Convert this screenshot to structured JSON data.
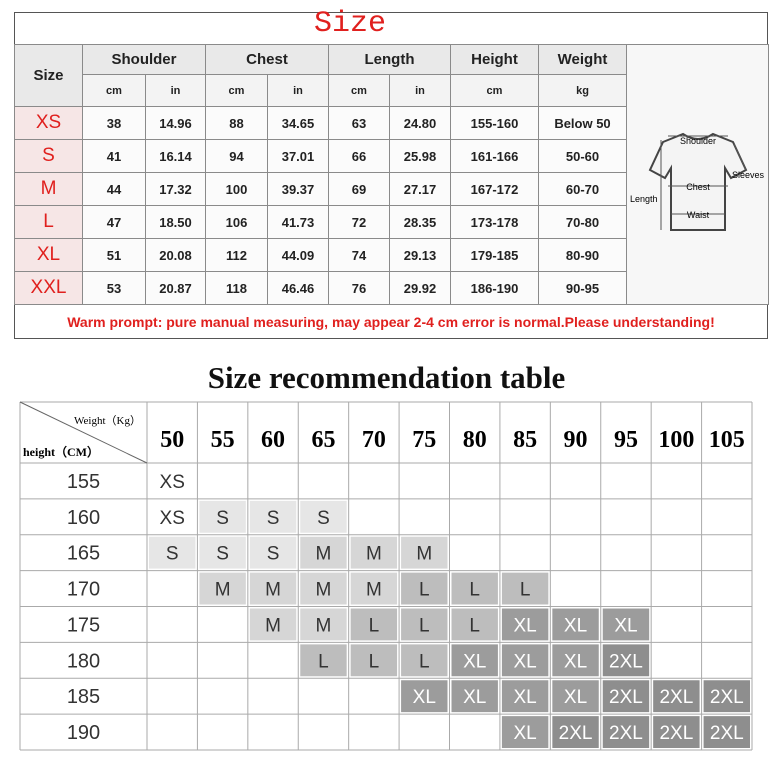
{
  "title": "Size",
  "size_table": {
    "header": [
      "Size",
      "Shoulder",
      "Chest",
      "Length",
      "Height",
      "Weight"
    ],
    "units": [
      "cm",
      "in",
      "cm",
      "in",
      "cm",
      "in",
      "cm",
      "kg"
    ],
    "rows": [
      [
        "XS",
        "38",
        "14.96",
        "88",
        "34.65",
        "63",
        "24.80",
        "155-160",
        "Below 50"
      ],
      [
        "S",
        "41",
        "16.14",
        "94",
        "37.01",
        "66",
        "25.98",
        "161-166",
        "50-60"
      ],
      [
        "M",
        "44",
        "17.32",
        "100",
        "39.37",
        "69",
        "27.17",
        "167-172",
        "60-70"
      ],
      [
        "L",
        "47",
        "18.50",
        "106",
        "41.73",
        "72",
        "28.35",
        "173-178",
        "70-80"
      ],
      [
        "XL",
        "51",
        "20.08",
        "112",
        "44.09",
        "74",
        "29.13",
        "179-185",
        "80-90"
      ],
      [
        "XXL",
        "53",
        "20.87",
        "118",
        "46.46",
        "76",
        "29.92",
        "186-190",
        "90-95"
      ]
    ]
  },
  "diagram": {
    "shoulder": "Shoulder",
    "sleeves": "Sleeves",
    "chest": "Chest",
    "length": "Length",
    "waist": "Waist"
  },
  "note": "Warm prompt: pure manual measuring, may appear 2-4 cm error is normal.Please understanding!",
  "recommendation": {
    "title": "Size recommendation table",
    "corner_weight": "Weight（Kg）",
    "corner_height": "height（CM）",
    "weights": [
      50,
      55,
      60,
      65,
      70,
      75,
      80,
      85,
      90,
      95,
      100,
      105
    ],
    "heights": [
      155,
      160,
      165,
      170,
      175,
      180,
      185,
      190
    ],
    "cells": [
      [
        "XS",
        null,
        null,
        null,
        null,
        null,
        null,
        null,
        null,
        null,
        null,
        null
      ],
      [
        "XS",
        "S",
        "S",
        "S",
        null,
        null,
        null,
        null,
        null,
        null,
        null,
        null
      ],
      [
        "S",
        "S",
        "S",
        "M",
        "M",
        "M",
        null,
        null,
        null,
        null,
        null,
        null
      ],
      [
        null,
        "M",
        "M",
        "M",
        "M",
        "L",
        "L",
        "L",
        null,
        null,
        null,
        null
      ],
      [
        null,
        null,
        "M",
        "M",
        "L",
        "L",
        "L",
        "XL",
        "XL",
        "XL",
        null,
        null
      ],
      [
        null,
        null,
        null,
        "L",
        "L",
        "L",
        "XL",
        "XL",
        "XL",
        "2XL",
        null,
        null
      ],
      [
        null,
        null,
        null,
        null,
        null,
        "XL",
        "XL",
        "XL",
        "XL",
        "2XL",
        "2XL",
        "2XL"
      ],
      [
        null,
        null,
        null,
        null,
        null,
        null,
        null,
        "XL",
        "2XL",
        "2XL",
        "2XL",
        "2XL"
      ]
    ],
    "shades": {
      "XS": "#ffffff",
      "S": "#e6e6e6",
      "M": "#d6d6d6",
      "L": "#bdbdbd",
      "XL": "#9c9c9c",
      "2XL": "#8e8e8e"
    }
  }
}
